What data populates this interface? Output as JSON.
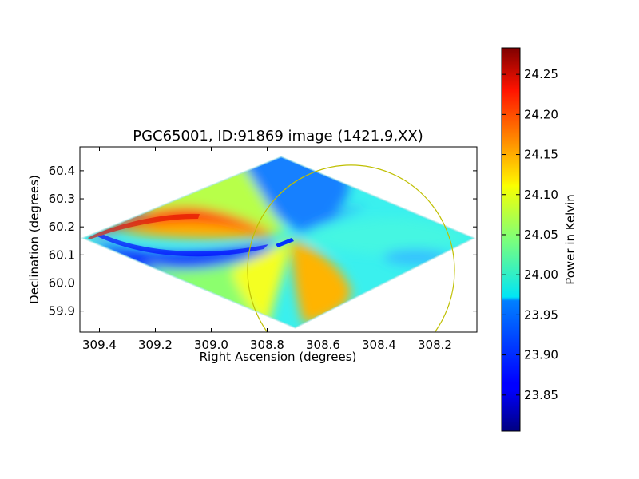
{
  "figure": {
    "background": "#ffffff"
  },
  "chart_data": {
    "type": "heatmap",
    "title": "PGC65001, ID:91869 image (1421.9,XX)",
    "xlabel": "Right Ascension (degrees)",
    "ylabel": "Declination (degrees)",
    "xlim": [
      309.47,
      308.05
    ],
    "ylim": [
      59.825,
      60.485
    ],
    "x_ticks": [
      309.4,
      309.2,
      309.0,
      308.8,
      308.6,
      308.4,
      308.2
    ],
    "x_tick_labels": [
      "309.4",
      "309.2",
      "309.0",
      "308.8",
      "308.6",
      "308.4",
      "308.2"
    ],
    "y_ticks": [
      59.9,
      60.0,
      60.1,
      60.2,
      60.3,
      60.4
    ],
    "y_tick_labels": [
      "59.9",
      "60.0",
      "60.1",
      "60.2",
      "60.3",
      "60.4"
    ],
    "colormap": "jet",
    "colorbar": {
      "label": "Power in Kelvin",
      "vmin": 23.805,
      "vmax": 24.283,
      "ticks": [
        23.85,
        23.9,
        23.95,
        24.0,
        24.05,
        24.1,
        24.15,
        24.2,
        24.25
      ],
      "tick_labels": [
        "23.85",
        "23.90",
        "23.95",
        "24.00",
        "24.05",
        "24.10",
        "24.15",
        "24.20",
        "24.25"
      ]
    },
    "image_footprint": {
      "shape": "diamond",
      "vertices": [
        [
          309.46,
          60.16
        ],
        [
          308.75,
          60.45
        ],
        [
          308.06,
          60.16
        ],
        [
          308.7,
          59.84
        ]
      ]
    },
    "overlay_circle": {
      "center": [
        308.5,
        60.045
      ],
      "ra_semi_axis": 0.37,
      "dec_semi_axis": 0.375,
      "color": "#bfbf00"
    }
  }
}
